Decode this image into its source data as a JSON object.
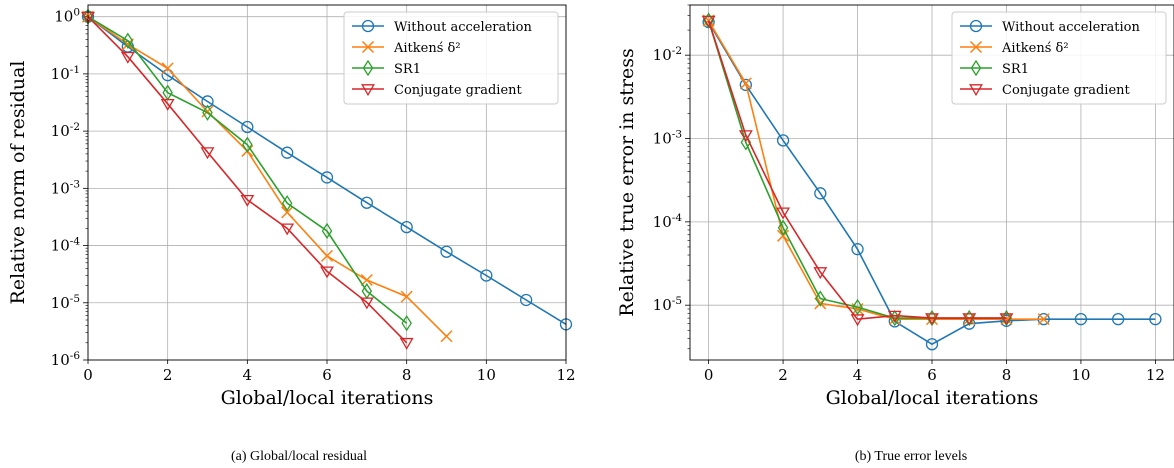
{
  "colors": {
    "without_acceleration": "#1f77b4",
    "aitken": "#ff7f0e",
    "sr1": "#2ca02c",
    "conjugate_gradient": "#d62728",
    "grid": "#b0b0b0"
  },
  "legend_labels": [
    "Without acceleration",
    "Aitkenś δ²",
    "SR1",
    "Conjugate gradient"
  ],
  "chart_data": [
    {
      "type": "line",
      "caption": "(a) Global/local residual",
      "xlabel": "Global/local iterations",
      "ylabel": "Relative norm of residual",
      "yscale": "log",
      "xlim": [
        0,
        12
      ],
      "ylim": [
        1e-06,
        1.6
      ],
      "xticks": [
        "0",
        "2",
        "4",
        "6",
        "8",
        "10",
        "12"
      ],
      "yticks": [
        "10^0",
        "10^-1",
        "10^-2",
        "10^-3",
        "10^-4",
        "10^-5",
        "10^-6"
      ],
      "grid": true,
      "legend_position": "top-right",
      "series": [
        {
          "name": "Without acceleration",
          "marker": "circle",
          "x": [
            0,
            1,
            2,
            3,
            4,
            5,
            6,
            7,
            8,
            9,
            10,
            11,
            12
          ],
          "y": [
            1.0,
            0.3,
            0.095,
            0.033,
            0.0118,
            0.0042,
            0.00155,
            0.00056,
            0.00021,
            7.8e-05,
            3e-05,
            1.12e-05,
            4.2e-06
          ]
        },
        {
          "name": "Aitkenś δ²",
          "marker": "x",
          "x": [
            0,
            1,
            2,
            3,
            4,
            5,
            6,
            7,
            8,
            9
          ],
          "y": [
            1.0,
            0.33,
            0.125,
            0.022,
            0.0045,
            0.00038,
            6.6e-05,
            2.5e-05,
            1.28e-05,
            2.6e-06
          ]
        },
        {
          "name": "SR1",
          "marker": "diamond",
          "x": [
            0,
            1,
            2,
            3,
            4,
            5,
            6,
            7,
            8
          ],
          "y": [
            1.0,
            0.38,
            0.047,
            0.021,
            0.0058,
            0.00055,
            0.00018,
            1.6e-05,
            4.4e-06
          ]
        },
        {
          "name": "Conjugate gradient",
          "marker": "triangle-down",
          "x": [
            0,
            1,
            2,
            3,
            4,
            5,
            6,
            7,
            8
          ],
          "y": [
            1.0,
            0.2,
            0.03,
            0.0043,
            0.00063,
            0.0002,
            3.55e-05,
            1.02e-05,
            2e-06
          ]
        }
      ]
    },
    {
      "type": "line",
      "caption": "(b) True error levels",
      "xlabel": "Global/local iterations",
      "ylabel": "Relative true error in stress",
      "yscale": "log",
      "xlim": [
        -0.5,
        12.5
      ],
      "ylim": [
        2.2e-06,
        0.04
      ],
      "xticks": [
        "0",
        "2",
        "4",
        "6",
        "8",
        "10",
        "12"
      ],
      "yticks": [
        "10^-2",
        "10^-3",
        "10^-4",
        "10^-5"
      ],
      "grid": true,
      "legend_position": "top-right",
      "series": [
        {
          "name": "Without acceleration",
          "marker": "circle",
          "x": [
            0,
            1,
            2,
            3,
            4,
            5,
            6,
            7,
            8,
            9,
            10,
            11,
            12
          ],
          "y": [
            0.025,
            0.0044,
            0.00095,
            0.00022,
            4.7e-05,
            6.4e-06,
            3.4e-06,
            6e-06,
            6.5e-06,
            6.8e-06,
            6.8e-06,
            6.8e-06,
            6.8e-06
          ]
        },
        {
          "name": "Aitkenś δ²",
          "marker": "x",
          "x": [
            0,
            1,
            2,
            3,
            4,
            5,
            6,
            7,
            8,
            9
          ],
          "y": [
            0.026,
            0.0046,
            6.8e-05,
            1.05e-05,
            9e-06,
            6.8e-06,
            6.8e-06,
            6.8e-06,
            6.8e-06,
            6.8e-06
          ]
        },
        {
          "name": "SR1",
          "marker": "diamond",
          "x": [
            0,
            1,
            2,
            3,
            4,
            5,
            6,
            7,
            8
          ],
          "y": [
            0.026,
            0.0009,
            8.5e-05,
            1.2e-05,
            9.5e-06,
            7e-06,
            7e-06,
            7e-06,
            7e-06
          ]
        },
        {
          "name": "Conjugate gradient",
          "marker": "triangle-down",
          "x": [
            0,
            1,
            2,
            3,
            4,
            5,
            6,
            7,
            8
          ],
          "y": [
            0.026,
            0.0011,
            0.00013,
            2.5e-05,
            6.8e-06,
            7.5e-06,
            7e-06,
            7e-06,
            7e-06
          ]
        }
      ]
    }
  ]
}
